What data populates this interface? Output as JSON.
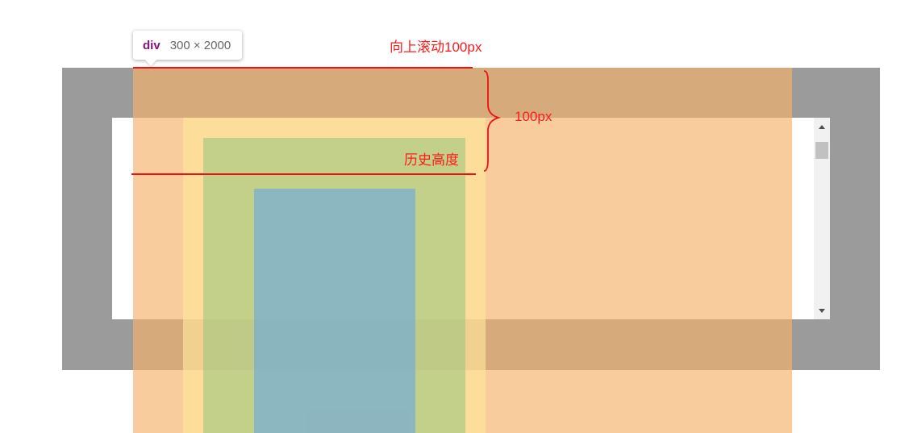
{
  "tooltip": {
    "tag": "div",
    "size": "300 × 2000"
  },
  "annotations": {
    "scroll_up": "向上滚动100px",
    "distance": "100px",
    "history_height": "历史高度"
  },
  "colors": {
    "frame": "#9b9b9b",
    "margin": "#f6b26b",
    "border": "#ffe599",
    "padding": "#93c47d",
    "content": "#6fa8dc",
    "annotation": "#ff1a1a",
    "tag": "#881280"
  },
  "icons": {
    "scroll_up": "scroll-up-arrow-icon",
    "scroll_down": "scroll-down-arrow-icon"
  }
}
